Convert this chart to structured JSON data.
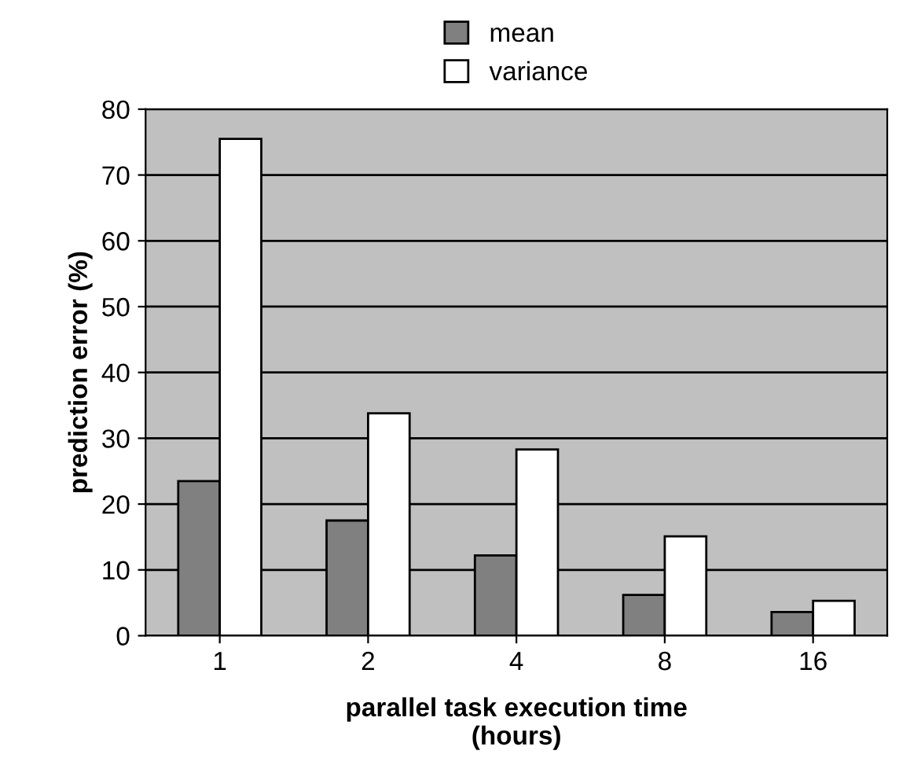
{
  "chart_data": {
    "type": "bar",
    "xlabel": "parallel task execution time\n(hours)",
    "ylabel": "prediction error (%)",
    "categories": [
      "1",
      "2",
      "4",
      "8",
      "16"
    ],
    "series": [
      {
        "name": "mean",
        "color": "#808080",
        "values": [
          23.5,
          17.5,
          12.2,
          6.2,
          3.6
        ]
      },
      {
        "name": "variance",
        "color": "#ffffff",
        "values": [
          75.5,
          33.8,
          28.3,
          15.1,
          5.3
        ]
      }
    ],
    "ylim": [
      0,
      80
    ],
    "yticks": [
      0,
      10,
      20,
      30,
      40,
      50,
      60,
      70,
      80
    ],
    "grid": "y",
    "legend": "top"
  }
}
